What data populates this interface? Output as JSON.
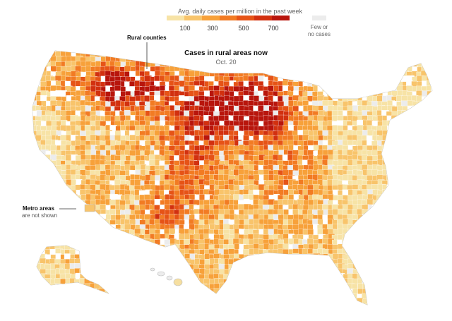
{
  "legend": {
    "title": "Avg. daily cases per million in the past week",
    "ticks": [
      "100",
      "300",
      "500",
      "700"
    ],
    "colors": [
      "#f7e3a6",
      "#f8c46b",
      "#f7a13a",
      "#f27b23",
      "#e65316",
      "#d2300f",
      "#b8150c"
    ],
    "few_label_line1": "Few or",
    "few_label_line2": "no cases",
    "few_color": "#ececec"
  },
  "map": {
    "title": "Cases in rural areas now",
    "date": "Oct. 20"
  },
  "annotations": {
    "rural_label": "Rural counties",
    "metro_label": "Metro areas",
    "metro_sub": "are not shown"
  }
}
